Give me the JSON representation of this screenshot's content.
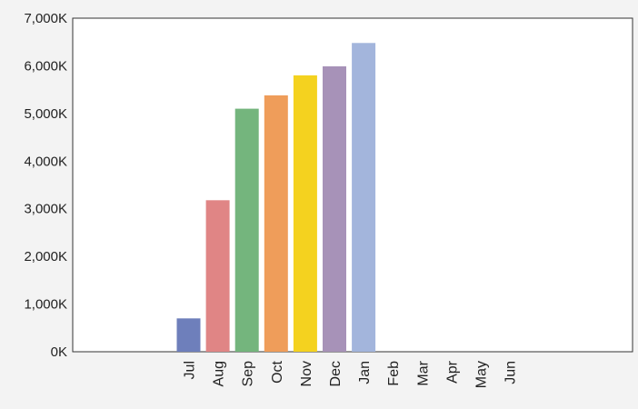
{
  "chart_data": {
    "type": "bar",
    "categories": [
      "Jul",
      "Aug",
      "Sep",
      "Oct",
      "Nov",
      "Dec",
      "Jan",
      "Feb",
      "Mar",
      "Apr",
      "May",
      "Jun"
    ],
    "values": [
      700,
      3180,
      5100,
      5380,
      5800,
      5990,
      6480,
      null,
      null,
      null,
      null,
      null
    ],
    "colors": [
      "#6e7fbb",
      "#e08585",
      "#74b57d",
      "#ef9d5a",
      "#f4d21f",
      "#a792b8",
      "#a3b5dc"
    ],
    "ylim": [
      0,
      7000
    ],
    "yticks": [
      0,
      1000,
      2000,
      3000,
      4000,
      5000,
      6000,
      7000
    ],
    "ytick_labels": [
      "0K",
      "1,000K",
      "2,000K",
      "3,000K",
      "4,000K",
      "5,000K",
      "6,000K",
      "7,000K"
    ],
    "title": "",
    "xlabel": "",
    "ylabel": "",
    "grid": false,
    "legend": "none"
  }
}
